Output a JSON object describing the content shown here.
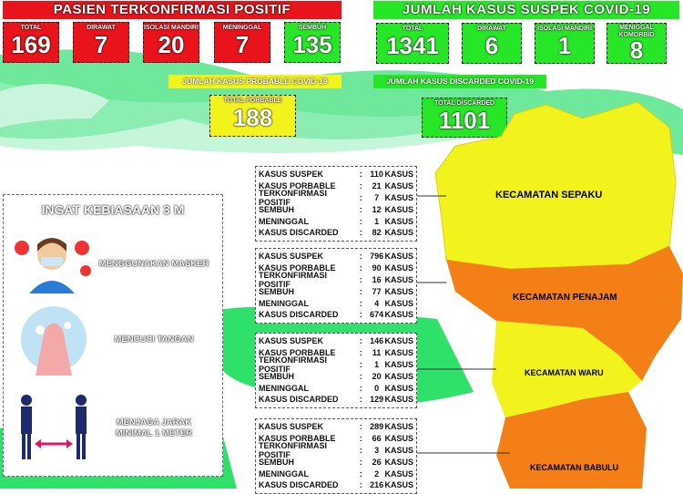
{
  "confirmed": {
    "title": "PASIEN TERKONFIRMASI POSITIF",
    "items": [
      {
        "label": "TOTAL",
        "value": "169"
      },
      {
        "label": "DIRAWAT",
        "value": "7"
      },
      {
        "label": "ISOLASI MANDIRI",
        "value": "20"
      },
      {
        "label": "MENINGGAL",
        "value": "7"
      },
      {
        "label": "SEMBUH",
        "value": "135"
      }
    ]
  },
  "suspect": {
    "title": "JUMLAH KASUS SUSPEK COVID-19",
    "items": [
      {
        "label": "TOTAL",
        "value": "1341"
      },
      {
        "label": "DIRAWAT",
        "value": "6"
      },
      {
        "label": "ISOLASI MANDIRI",
        "value": "1"
      },
      {
        "label": "MENIGGAL KOMORBID",
        "value": "8"
      }
    ]
  },
  "probable": {
    "title": "JUMLAH KASUS PROBABLE COVID-19",
    "label": "TOTAL PORBABLE",
    "value": "188"
  },
  "discarded": {
    "title": "JUMLAH KASUS DISCARDED COVID-19",
    "label": "TOTAL DISCARDED",
    "value": "1101"
  },
  "habits": {
    "title": "INGAT KEBIASAAN 3 M",
    "items": [
      "MENGGUNAKAN MASKER",
      "MENCUCI TANGAN",
      "MENJAGA JARAK MINIMAL 1 METER"
    ]
  },
  "unit": "KASUS",
  "row_labels": [
    "KASUS SUSPEK",
    "KASUS PORBABLE",
    "TERKONFIRMASI POSITIF",
    "SEMBUH",
    "MENINGGAL",
    "KASUS DISCARDED"
  ],
  "districts": [
    {
      "name": "KECAMATAN SEPAKU",
      "values": [
        "110",
        "21",
        "7",
        "12",
        "1",
        "82"
      ],
      "color": "#f2f21c"
    },
    {
      "name": "KECAMATAN PENAJAM",
      "values": [
        "796",
        "90",
        "16",
        "77",
        "4",
        "674"
      ],
      "color": "#f57f17"
    },
    {
      "name": "KECAMATAN WARU",
      "values": [
        "146",
        "11",
        "1",
        "20",
        "0",
        "129"
      ],
      "color": "#f2f21c"
    },
    {
      "name": "KECAMATAN BABULU",
      "values": [
        "289",
        "66",
        "3",
        "26",
        "2",
        "216"
      ],
      "color": "#f57f17"
    }
  ]
}
